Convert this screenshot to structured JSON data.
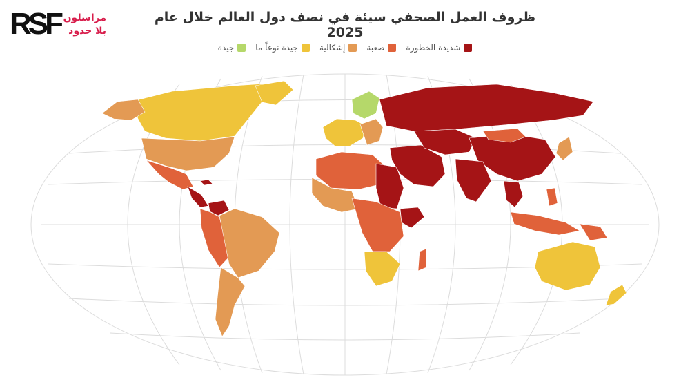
{
  "logo": {
    "mark": "RSF",
    "line1": "مراسلون",
    "line2": "بلا حدود"
  },
  "title": "ظروف العمل الصحفي سيئة في نصف دول العالم خلال عام 2025",
  "legend": [
    {
      "label": "شديدة الخطورة",
      "color": "#a51416"
    },
    {
      "label": "صعبة",
      "color": "#e0623a"
    },
    {
      "label": "إشكالية",
      "color": "#e39a54"
    },
    {
      "label": "جيدة نوعاً ما",
      "color": "#efc43a"
    },
    {
      "label": "جيدة",
      "color": "#b5d86a"
    }
  ],
  "colors": {
    "very_serious": "#a51416",
    "difficult": "#e0623a",
    "problematic": "#e39a54",
    "satisfactory": "#efc43a",
    "good": "#b5d86a",
    "graticule": "#dcdcdc"
  }
}
